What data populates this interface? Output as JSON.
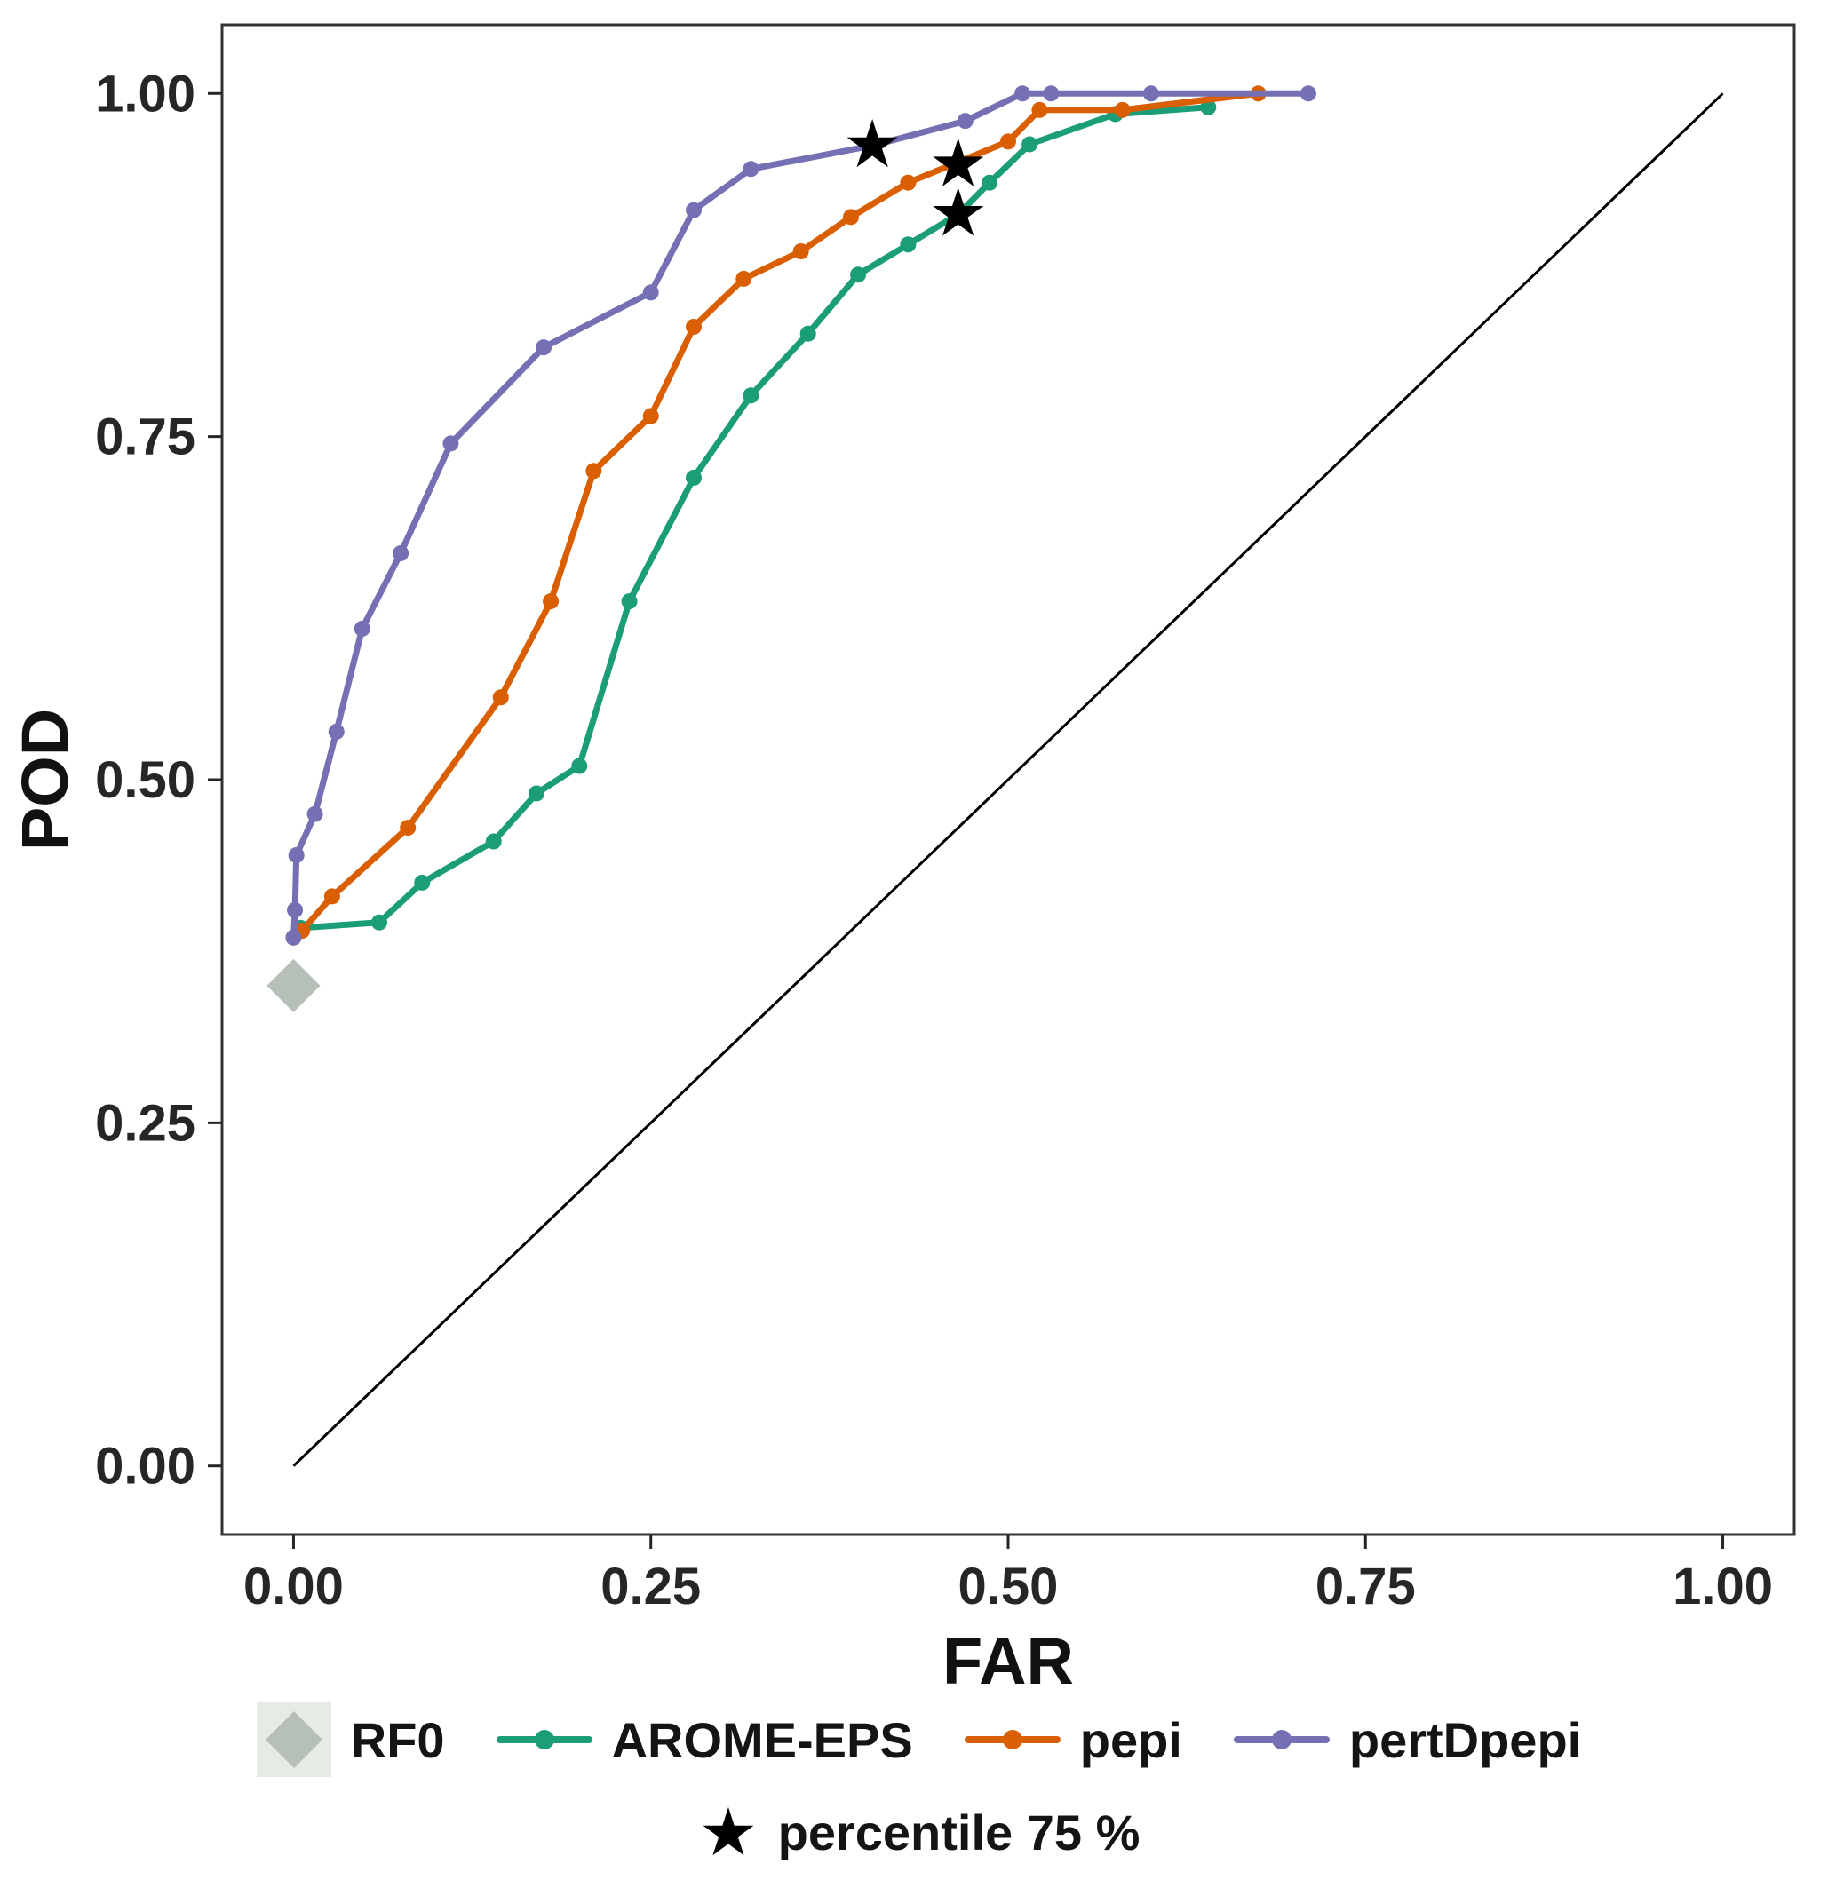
{
  "chart_data": {
    "type": "line",
    "title": "",
    "xlabel": "FAR",
    "ylabel": "POD",
    "xlim": [
      0,
      1
    ],
    "ylim": [
      0,
      1
    ],
    "grid": false,
    "xticks": [
      0.0,
      0.25,
      0.5,
      0.75,
      1.0
    ],
    "yticks": [
      0.0,
      0.25,
      0.5,
      0.75,
      1.0
    ],
    "xtick_labels": [
      "0.00",
      "0.25",
      "0.50",
      "0.75",
      "1.00"
    ],
    "ytick_labels": [
      "0.00",
      "0.25",
      "0.50",
      "0.75",
      "1.00"
    ],
    "axis_color": "#262626",
    "panel_border_color": "#333333",
    "diagonal": {
      "from": [
        0,
        0
      ],
      "to": [
        1,
        1
      ],
      "color": "#000000"
    },
    "series": [
      {
        "name": "AROME-EPS",
        "color": "#1b9e77",
        "marker": "circle",
        "points": [
          [
            0.0,
            0.385
          ],
          [
            0.005,
            0.392
          ],
          [
            0.06,
            0.396
          ],
          [
            0.09,
            0.425
          ],
          [
            0.14,
            0.455
          ],
          [
            0.17,
            0.49
          ],
          [
            0.2,
            0.51
          ],
          [
            0.235,
            0.63
          ],
          [
            0.28,
            0.72
          ],
          [
            0.32,
            0.78
          ],
          [
            0.36,
            0.825
          ],
          [
            0.395,
            0.868
          ],
          [
            0.43,
            0.89
          ],
          [
            0.465,
            0.912
          ],
          [
            0.487,
            0.935
          ],
          [
            0.515,
            0.963
          ],
          [
            0.575,
            0.985
          ],
          [
            0.64,
            0.99
          ]
        ]
      },
      {
        "name": "pepi",
        "color": "#d95f02",
        "marker": "circle",
        "points": [
          [
            0.0,
            0.385
          ],
          [
            0.006,
            0.39
          ],
          [
            0.027,
            0.415
          ],
          [
            0.08,
            0.465
          ],
          [
            0.145,
            0.56
          ],
          [
            0.18,
            0.63
          ],
          [
            0.21,
            0.725
          ],
          [
            0.25,
            0.765
          ],
          [
            0.28,
            0.83
          ],
          [
            0.315,
            0.865
          ],
          [
            0.355,
            0.885
          ],
          [
            0.39,
            0.91
          ],
          [
            0.43,
            0.935
          ],
          [
            0.465,
            0.95
          ],
          [
            0.5,
            0.965
          ],
          [
            0.522,
            0.988
          ],
          [
            0.58,
            0.988
          ],
          [
            0.675,
            1.0
          ]
        ]
      },
      {
        "name": "pertDpepi",
        "color": "#7570b3",
        "marker": "circle",
        "points": [
          [
            0.0,
            0.385
          ],
          [
            0.001,
            0.405
          ],
          [
            0.002,
            0.445
          ],
          [
            0.015,
            0.475
          ],
          [
            0.03,
            0.535
          ],
          [
            0.048,
            0.61
          ],
          [
            0.075,
            0.665
          ],
          [
            0.11,
            0.745
          ],
          [
            0.175,
            0.815
          ],
          [
            0.25,
            0.855
          ],
          [
            0.28,
            0.915
          ],
          [
            0.32,
            0.945
          ],
          [
            0.405,
            0.962
          ],
          [
            0.47,
            0.98
          ],
          [
            0.51,
            1.0
          ],
          [
            0.53,
            1.0
          ],
          [
            0.6,
            1.0
          ],
          [
            0.71,
            1.0
          ]
        ]
      }
    ],
    "reference_point": {
      "name": "RF0",
      "x": 0.0,
      "y": 0.35,
      "color": "#b7c0b6",
      "marker": "diamond"
    },
    "stars": {
      "label": "percentile 75 %",
      "color": "#000000",
      "points": [
        [
          0.405,
          0.962
        ],
        [
          0.465,
          0.948
        ],
        [
          0.465,
          0.912
        ]
      ]
    },
    "legend": {
      "row1": [
        {
          "label": "RF0",
          "marker": "diamond",
          "color": "#b7c0b6",
          "key_bg": "#e7ebe5"
        },
        {
          "label": "AROME-EPS",
          "marker": "line-circle",
          "color": "#1b9e77"
        },
        {
          "label": "pepi",
          "marker": "line-circle",
          "color": "#d95f02"
        },
        {
          "label": "pertDpepi",
          "marker": "line-circle",
          "color": "#7570b3"
        }
      ],
      "row2": [
        {
          "label": "percentile 75 %",
          "marker": "star",
          "color": "#000000"
        }
      ]
    }
  }
}
